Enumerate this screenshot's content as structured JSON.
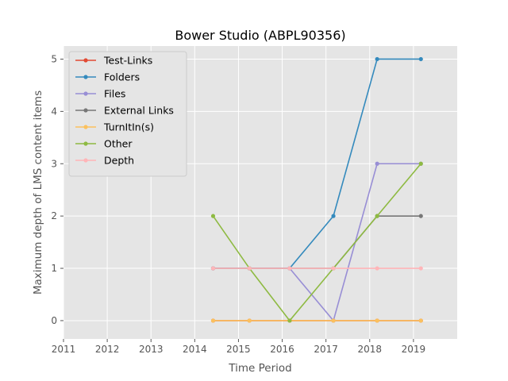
{
  "chart_data": {
    "type": "line",
    "title": "Bower Studio (ABPL90356)",
    "xlabel": "Time Period",
    "ylabel": "Maximum depth of LMS content items",
    "xlim": [
      2011,
      2020
    ],
    "ylim": [
      -0.35,
      5.25
    ],
    "xticks": [
      2011,
      2012,
      2013,
      2014,
      2015,
      2016,
      2017,
      2018,
      2019
    ],
    "yticks": [
      0,
      1,
      2,
      3,
      4,
      5
    ],
    "grid": true,
    "legend_position": "upper-left",
    "x": [
      2014.42,
      2015.25,
      2016.17,
      2017.17,
      2018.17,
      2019.17
    ],
    "series": [
      {
        "name": "Test-Links",
        "color": "#E24A33",
        "values": [
          0,
          0,
          0,
          0,
          0,
          0
        ]
      },
      {
        "name": "Folders",
        "color": "#348ABD",
        "values": [
          1,
          1,
          1,
          2,
          5,
          5
        ]
      },
      {
        "name": "Files",
        "color": "#988ED5",
        "values": [
          1,
          1,
          1,
          0,
          3,
          3
        ]
      },
      {
        "name": "External Links",
        "color": "#777777",
        "values": [
          1,
          1,
          1,
          1,
          2,
          2
        ]
      },
      {
        "name": "TurnItIn(s)",
        "color": "#FBC15E",
        "values": [
          0,
          0,
          0,
          0,
          0,
          0
        ]
      },
      {
        "name": "Other",
        "color": "#8EBA42",
        "values": [
          2,
          1,
          0,
          1,
          2,
          3
        ]
      },
      {
        "name": "Depth",
        "color": "#FFB5B8",
        "values": [
          1,
          1,
          1,
          1,
          1,
          1
        ]
      }
    ]
  }
}
